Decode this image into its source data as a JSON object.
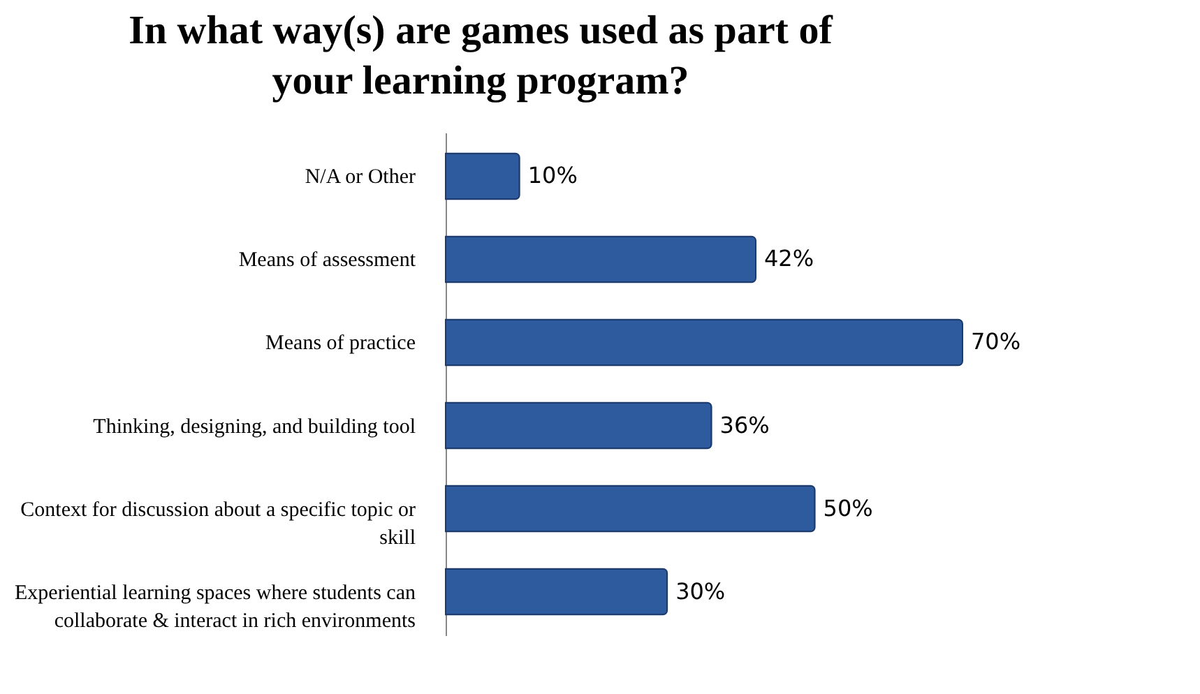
{
  "chart_data": {
    "type": "bar",
    "orientation": "horizontal",
    "title": "In what way(s) are games used as part of your learning program?",
    "categories": [
      "N/A or Other",
      "Means of assessment",
      "Means of practice",
      "Thinking, designing, and building tool",
      "Context for discussion about a specific topic or skill",
      "Experiential learning spaces where students can collaborate & interact in rich environments"
    ],
    "values": [
      10,
      42,
      70,
      36,
      50,
      30
    ],
    "value_labels": [
      "10%",
      "42%",
      "70%",
      "36%",
      "50%",
      "30%"
    ],
    "color": "#2e5a9e"
  }
}
